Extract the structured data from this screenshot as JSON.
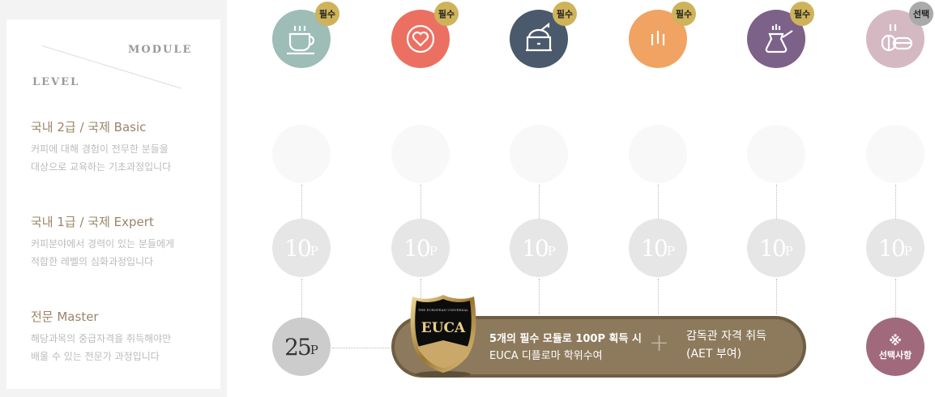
{
  "header": {
    "module": "MODULE",
    "level": "LEVEL"
  },
  "levels": [
    {
      "title": "국내 2급 / 국제 Basic",
      "desc1": "커피에 대해 경험이 전무한 분들을",
      "desc2": "대상으로 교육하는 기초과정입니다"
    },
    {
      "title": "국내 1급 / 국제 Expert",
      "desc1": "커피분야에서 경력이 있는 분들에게",
      "desc2": "적합한 레벨의 심화과정입니다"
    },
    {
      "title": "전문 Master",
      "desc1": "해당과목의 중급자격을 취득해야만",
      "desc2": "배울 수 있는 전문가 과정입니다"
    }
  ],
  "modules": [
    {
      "icon": "coffee-cup-icon",
      "color": "#9dbdb6",
      "badge": "필수",
      "badge_color": "#cfb35a",
      "points": "10",
      "unit": "P"
    },
    {
      "icon": "heart-icon",
      "color": "#ec7062",
      "badge": "필수",
      "badge_color": "#cfb35a",
      "points": "10",
      "unit": "P"
    },
    {
      "icon": "coffee-grinder-icon",
      "color": "#4a596b",
      "badge": "필수",
      "badge_color": "#cfb35a",
      "points": "10",
      "unit": "P"
    },
    {
      "icon": "steam-lines-icon",
      "color": "#f0a362",
      "badge": "필수",
      "badge_color": "#cfb35a",
      "points": "10",
      "unit": "P"
    },
    {
      "icon": "cezve-icon",
      "color": "#7c6189",
      "badge": "필수",
      "badge_color": "#cfb35a",
      "points": "10",
      "unit": "P"
    },
    {
      "icon": "coffee-beans-icon",
      "color": "#d4b9c2",
      "badge": "선택",
      "badge_color": "#aaaaaa",
      "points": "10",
      "unit": "P"
    }
  ],
  "master": {
    "points": "25",
    "unit": "P"
  },
  "diploma": {
    "logo_text": "EUCA",
    "line1": "5개의 필수 모듈로 100P 획득 시",
    "line2": "EUCA 디플로마 학위수여",
    "plus": "+",
    "line3": "감독관 자격 취득",
    "line4": "(AET 부여)"
  },
  "optional": {
    "symbol": "※",
    "label": "선택사항"
  }
}
